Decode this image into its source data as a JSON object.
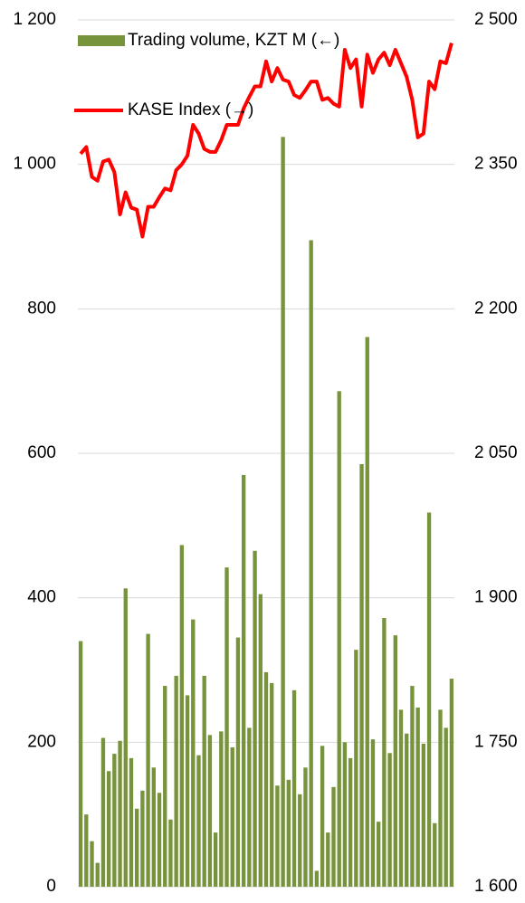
{
  "chart_data": {
    "type": "bar-line",
    "series": [
      {
        "name": "Trading volume, KZT M (←)",
        "type": "bar",
        "axis": "y",
        "color": "#77933c",
        "values": [
          340,
          100,
          63,
          33,
          206,
          160,
          184,
          202,
          413,
          178,
          108,
          133,
          350,
          165,
          130,
          278,
          93,
          292,
          473,
          265,
          370,
          182,
          292,
          210,
          75,
          215,
          442,
          193,
          345,
          570,
          220,
          465,
          405,
          297,
          282,
          140,
          1038,
          148,
          272,
          128,
          165,
          895,
          22,
          195,
          75,
          138,
          686,
          200,
          178,
          328,
          585,
          761,
          204,
          90,
          372,
          185,
          348,
          245,
          212,
          278,
          248,
          198,
          518,
          88,
          245,
          220,
          288
        ]
      },
      {
        "name": "KASE Index (→)",
        "type": "line",
        "axis": "y2",
        "color": "#ff0000",
        "values": [
          2361,
          2368,
          2337,
          2333,
          2353,
          2355,
          2342,
          2298,
          2321,
          2305,
          2303,
          2275,
          2306,
          2306,
          2316,
          2325,
          2323,
          2344,
          2350,
          2359,
          2391,
          2382,
          2366,
          2363,
          2363,
          2375,
          2391,
          2391,
          2391,
          2408,
          2420,
          2431,
          2431,
          2457,
          2436,
          2450,
          2438,
          2436,
          2422,
          2419,
          2427,
          2436,
          2436,
          2417,
          2419,
          2413,
          2410,
          2469,
          2450,
          2459,
          2410,
          2464,
          2445,
          2459,
          2466,
          2453,
          2469,
          2455,
          2441,
          2417,
          2378,
          2382,
          2436,
          2428,
          2457,
          2455,
          2476
        ]
      }
    ],
    "ylim": [
      0,
      1200
    ],
    "yticks": [
      0,
      200,
      400,
      600,
      800,
      {
        "value": 1000,
        "label": "1 000"
      },
      {
        "value": 1200,
        "label": "1 200"
      }
    ],
    "y2lim": [
      1600,
      2500
    ],
    "y2ticks": [
      {
        "value": 1600,
        "label": "1 600"
      },
      {
        "value": 1750,
        "label": "1 750"
      },
      {
        "value": 1900,
        "label": "1 900"
      },
      {
        "value": 2050,
        "label": "2 050"
      },
      {
        "value": 2200,
        "label": "2 200"
      },
      {
        "value": 2350,
        "label": "2 350"
      },
      {
        "value": 2500,
        "label": "2 500"
      }
    ],
    "grid": true,
    "legend": "top-left"
  }
}
